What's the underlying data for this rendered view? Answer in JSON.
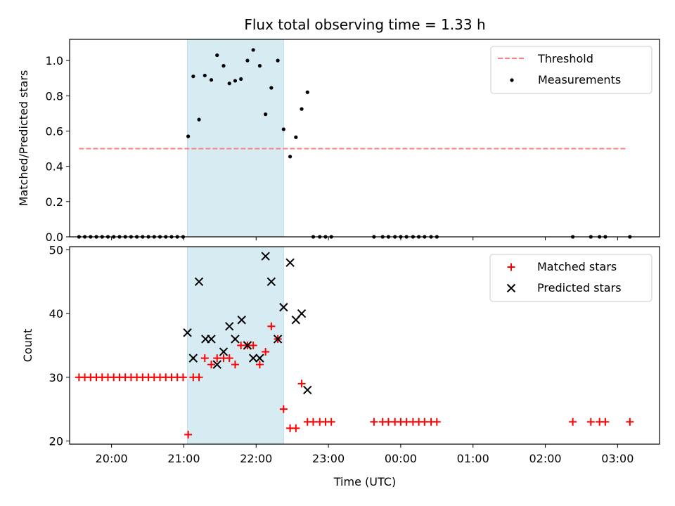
{
  "chart_data": {
    "title": "Flux total observing time = 1.33 h",
    "xlabel": "Time (UTC)",
    "x_unit": "hours after 00:00 UTC of the first night (values > 24 are after midnight)",
    "xlim": [
      19.42,
      27.58
    ],
    "xticks": [
      {
        "value": 20,
        "label": "20:00"
      },
      {
        "value": 21,
        "label": "21:00"
      },
      {
        "value": 22,
        "label": "22:00"
      },
      {
        "value": 23,
        "label": "23:00"
      },
      {
        "value": 24,
        "label": "00:00"
      },
      {
        "value": 25,
        "label": "01:00"
      },
      {
        "value": 26,
        "label": "02:00"
      },
      {
        "value": 27,
        "label": "03:00"
      }
    ],
    "highlight_span": {
      "x0": 21.05,
      "x1": 22.38,
      "color": "#add8e6"
    },
    "panels": [
      {
        "type": "scatter",
        "ylabel": "Matched/Predicted stars",
        "ylim": [
          0,
          1.12
        ],
        "yticks": [
          "0.0",
          "0.2",
          "0.4",
          "0.6",
          "0.8",
          "1.0"
        ],
        "ytick_values": [
          0,
          0.2,
          0.4,
          0.6,
          0.8,
          1.0
        ],
        "legend_position": "upper right",
        "threshold": {
          "name": "Threshold",
          "value": 0.5,
          "x0": 19.55,
          "x1": 27.13,
          "color": "#ff7f7f",
          "style": "dashed"
        },
        "series": [
          {
            "name": "Measurements",
            "marker": "dot",
            "color": "#000000",
            "points": [
              [
                19.55,
                0
              ],
              [
                19.63,
                0
              ],
              [
                19.71,
                0
              ],
              [
                19.79,
                0
              ],
              [
                19.87,
                0
              ],
              [
                19.95,
                0
              ],
              [
                20.03,
                0
              ],
              [
                20.11,
                0
              ],
              [
                20.19,
                0
              ],
              [
                20.27,
                0
              ],
              [
                20.35,
                0
              ],
              [
                20.43,
                0
              ],
              [
                20.51,
                0
              ],
              [
                20.59,
                0
              ],
              [
                20.67,
                0
              ],
              [
                20.75,
                0
              ],
              [
                20.83,
                0
              ],
              [
                20.91,
                0
              ],
              [
                20.99,
                0
              ],
              [
                21.06,
                0.57
              ],
              [
                21.13,
                0.91
              ],
              [
                21.21,
                0.665
              ],
              [
                21.29,
                0.915
              ],
              [
                21.38,
                0.89
              ],
              [
                21.46,
                1.03
              ],
              [
                21.55,
                0.97
              ],
              [
                21.63,
                0.87
              ],
              [
                21.71,
                0.885
              ],
              [
                21.79,
                0.895
              ],
              [
                21.88,
                1.0
              ],
              [
                21.96,
                1.06
              ],
              [
                22.05,
                0.97
              ],
              [
                22.13,
                0.695
              ],
              [
                22.21,
                0.845
              ],
              [
                22.3,
                1.0
              ],
              [
                22.38,
                0.61
              ],
              [
                22.47,
                0.455
              ],
              [
                22.55,
                0.565
              ],
              [
                22.63,
                0.725
              ],
              [
                22.71,
                0.82
              ],
              [
                22.79,
                0
              ],
              [
                22.88,
                0
              ],
              [
                22.96,
                0
              ],
              [
                23.04,
                0
              ],
              [
                23.63,
                0
              ],
              [
                23.75,
                0
              ],
              [
                23.83,
                0
              ],
              [
                23.92,
                0
              ],
              [
                24.0,
                0
              ],
              [
                24.08,
                0
              ],
              [
                24.17,
                0
              ],
              [
                24.25,
                0
              ],
              [
                24.33,
                0
              ],
              [
                24.42,
                0
              ],
              [
                24.5,
                0
              ],
              [
                26.38,
                0
              ],
              [
                26.63,
                0
              ],
              [
                26.75,
                0
              ],
              [
                26.83,
                0
              ],
              [
                27.17,
                0
              ]
            ]
          }
        ]
      },
      {
        "type": "scatter",
        "ylabel": "Count",
        "ylim": [
          19.5,
          50.5
        ],
        "yticks": [
          "20",
          "30",
          "40",
          "50"
        ],
        "ytick_values": [
          20,
          30,
          40,
          50
        ],
        "legend_position": "upper right",
        "series": [
          {
            "name": "Matched stars",
            "marker": "plus",
            "color": "#ff0000",
            "points": [
              [
                19.55,
                30
              ],
              [
                19.63,
                30
              ],
              [
                19.71,
                30
              ],
              [
                19.79,
                30
              ],
              [
                19.87,
                30
              ],
              [
                19.95,
                30
              ],
              [
                20.03,
                30
              ],
              [
                20.11,
                30
              ],
              [
                20.19,
                30
              ],
              [
                20.27,
                30
              ],
              [
                20.35,
                30
              ],
              [
                20.43,
                30
              ],
              [
                20.51,
                30
              ],
              [
                20.59,
                30
              ],
              [
                20.67,
                30
              ],
              [
                20.75,
                30
              ],
              [
                20.83,
                30
              ],
              [
                20.91,
                30
              ],
              [
                20.99,
                30
              ],
              [
                21.06,
                21
              ],
              [
                21.13,
                30
              ],
              [
                21.21,
                30
              ],
              [
                21.29,
                33
              ],
              [
                21.38,
                32
              ],
              [
                21.46,
                33
              ],
              [
                21.55,
                33
              ],
              [
                21.63,
                33
              ],
              [
                21.71,
                32
              ],
              [
                21.79,
                35
              ],
              [
                21.88,
                35
              ],
              [
                21.96,
                35
              ],
              [
                22.05,
                32
              ],
              [
                22.13,
                34
              ],
              [
                22.21,
                38
              ],
              [
                22.3,
                36
              ],
              [
                22.38,
                25
              ],
              [
                22.47,
                22
              ],
              [
                22.55,
                22
              ],
              [
                22.63,
                29
              ],
              [
                22.71,
                23
              ],
              [
                22.79,
                23
              ],
              [
                22.88,
                23
              ],
              [
                22.96,
                23
              ],
              [
                23.04,
                23
              ],
              [
                23.63,
                23
              ],
              [
                23.75,
                23
              ],
              [
                23.83,
                23
              ],
              [
                23.92,
                23
              ],
              [
                24.0,
                23
              ],
              [
                24.08,
                23
              ],
              [
                24.17,
                23
              ],
              [
                24.25,
                23
              ],
              [
                24.33,
                23
              ],
              [
                24.42,
                23
              ],
              [
                24.5,
                23
              ],
              [
                26.38,
                23
              ],
              [
                26.63,
                23
              ],
              [
                26.75,
                23
              ],
              [
                26.83,
                23
              ],
              [
                27.17,
                23
              ]
            ]
          },
          {
            "name": "Predicted stars",
            "marker": "x",
            "color": "#000000",
            "points": [
              [
                21.05,
                37
              ],
              [
                21.13,
                33
              ],
              [
                21.21,
                45
              ],
              [
                21.3,
                36
              ],
              [
                21.38,
                36
              ],
              [
                21.46,
                32
              ],
              [
                21.55,
                34
              ],
              [
                21.63,
                38
              ],
              [
                21.71,
                36
              ],
              [
                21.8,
                39
              ],
              [
                21.88,
                35
              ],
              [
                21.96,
                33
              ],
              [
                22.05,
                33
              ],
              [
                22.13,
                49
              ],
              [
                22.21,
                45
              ],
              [
                22.3,
                36
              ],
              [
                22.38,
                41
              ],
              [
                22.47,
                48
              ],
              [
                22.55,
                39
              ],
              [
                22.63,
                40
              ],
              [
                22.71,
                28
              ]
            ]
          }
        ]
      }
    ]
  }
}
